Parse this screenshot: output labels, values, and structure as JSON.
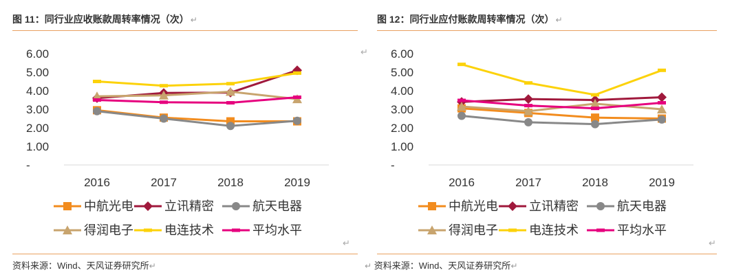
{
  "figures": [
    {
      "title": "图 11：同行业应收账款周转率情况（次）",
      "source": "资料来源：Wind、天风证券研究所"
    },
    {
      "title": "图 12：同行业应付账款周转率情况（次）",
      "source": "资料来源：Wind、天风证券研究所"
    }
  ],
  "return_mark": "↵",
  "chart_data": [
    {
      "type": "line",
      "title": "同行业应收账款周转率情况（次）",
      "categories": [
        "2016",
        "2017",
        "2018",
        "2019"
      ],
      "ylim": [
        0,
        6
      ],
      "yticks": [
        "-",
        "1.00",
        "2.00",
        "3.00",
        "4.00",
        "5.00",
        "6.00"
      ],
      "grid": false,
      "legend_position": "bottom",
      "series": [
        {
          "name": "中航光电",
          "color": "#f28c1e",
          "marker": "square",
          "values": [
            2.95,
            2.55,
            2.35,
            2.35
          ]
        },
        {
          "name": "立讯精密",
          "color": "#a0193c",
          "marker": "diamond",
          "values": [
            3.6,
            3.88,
            3.9,
            5.1
          ]
        },
        {
          "name": "航天电器",
          "color": "#888888",
          "marker": "circle",
          "values": [
            2.9,
            2.5,
            2.1,
            2.38
          ]
        },
        {
          "name": "得润电子",
          "color": "#c8a46e",
          "marker": "triangle",
          "values": [
            3.7,
            3.75,
            3.95,
            3.55
          ]
        },
        {
          "name": "电连技术",
          "color": "#fcd20a",
          "marker": "dash",
          "values": [
            4.5,
            4.27,
            4.38,
            4.95
          ]
        },
        {
          "name": "平均水平",
          "color": "#e6007e",
          "marker": "dash",
          "values": [
            3.5,
            3.38,
            3.35,
            3.65
          ]
        }
      ]
    },
    {
      "type": "line",
      "title": "同行业应付账款周转率情况（次）",
      "categories": [
        "2016",
        "2017",
        "2018",
        "2019"
      ],
      "ylim": [
        0,
        6
      ],
      "yticks": [
        "-",
        "1.00",
        "2.00",
        "3.00",
        "4.00",
        "5.00",
        "6.00"
      ],
      "grid": false,
      "legend_position": "bottom",
      "series": [
        {
          "name": "中航光电",
          "color": "#f28c1e",
          "marker": "square",
          "values": [
            3.05,
            2.8,
            2.55,
            2.5
          ]
        },
        {
          "name": "立讯精密",
          "color": "#a0193c",
          "marker": "diamond",
          "values": [
            3.4,
            3.55,
            3.5,
            3.65
          ]
        },
        {
          "name": "航天电器",
          "color": "#888888",
          "marker": "circle",
          "values": [
            2.65,
            2.3,
            2.2,
            2.45
          ]
        },
        {
          "name": "得润电子",
          "color": "#c8a46e",
          "marker": "triangle",
          "values": [
            3.15,
            2.9,
            3.3,
            3.0
          ]
        },
        {
          "name": "电连技术",
          "color": "#fcd20a",
          "marker": "dash",
          "values": [
            5.42,
            4.42,
            3.78,
            5.1
          ]
        },
        {
          "name": "平均水平",
          "color": "#e6007e",
          "marker": "dash",
          "values": [
            3.48,
            3.2,
            3.05,
            3.35
          ]
        }
      ]
    }
  ]
}
